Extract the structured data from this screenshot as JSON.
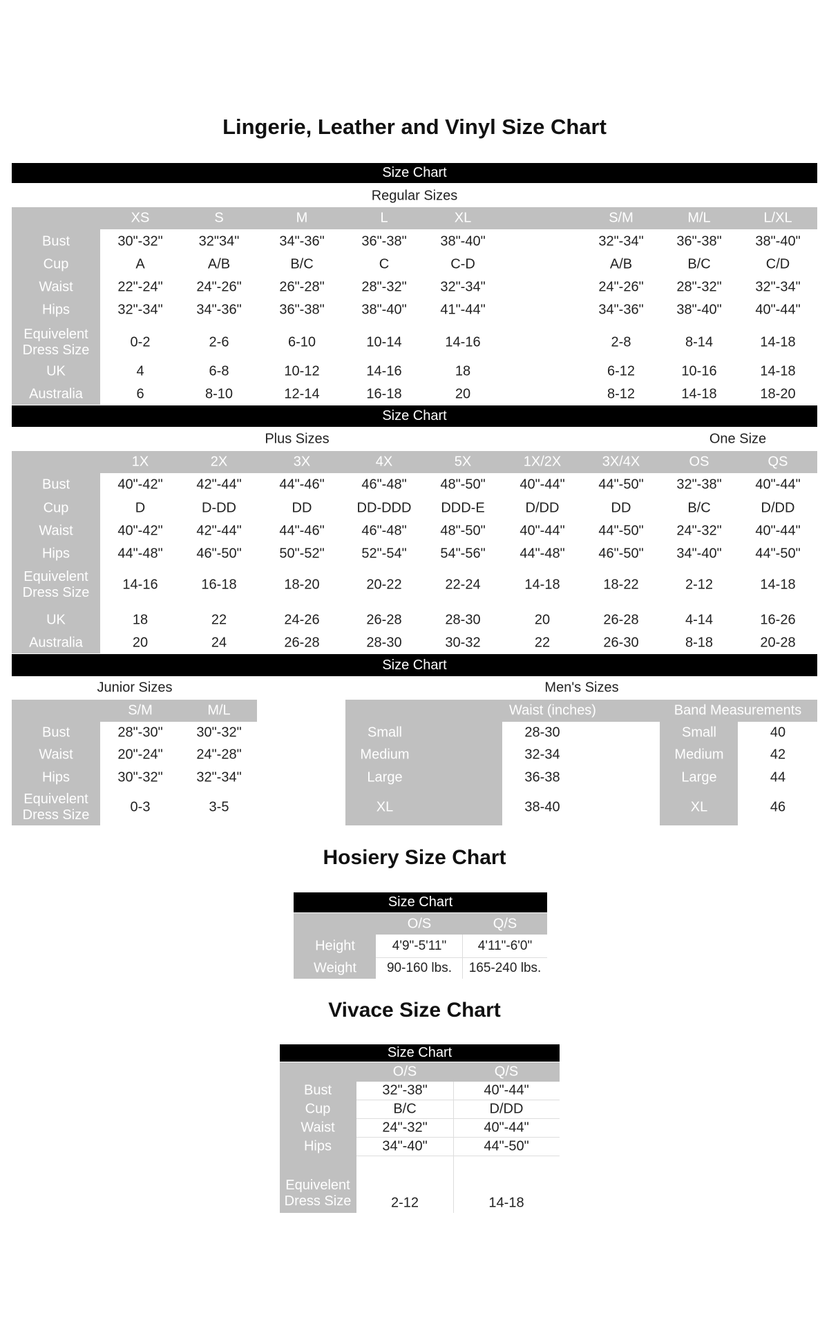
{
  "main_title": "Lingerie, Leather and Vinyl Size Chart",
  "bar_label": "Size Chart",
  "regular": {
    "subtitle": "Regular Sizes",
    "columns": [
      "XS",
      "S",
      "M",
      "L",
      "XL",
      "S/M",
      "M/L",
      "L/XL"
    ],
    "rows": [
      {
        "label": "Bust",
        "values": [
          "30\"-32\"",
          "32\"34\"",
          "34\"-36\"",
          "36\"-38\"",
          "38\"-40\"",
          "32\"-34\"",
          "36\"-38\"",
          "38\"-40\""
        ]
      },
      {
        "label": "Cup",
        "values": [
          "A",
          "A/B",
          "B/C",
          "C",
          "C-D",
          "A/B",
          "B/C",
          "C/D"
        ]
      },
      {
        "label": "Waist",
        "values": [
          "22\"-24\"",
          "24\"-26\"",
          "26\"-28\"",
          "28\"-32\"",
          "32\"-34\"",
          "24\"-26\"",
          "28\"-32\"",
          "32\"-34\""
        ]
      },
      {
        "label": "Hips",
        "values": [
          "32\"-34\"",
          "34\"-36\"",
          "36\"-38\"",
          "38\"-40\"",
          "41\"-44\"",
          "34\"-36\"",
          "38\"-40\"",
          "40\"-44\""
        ]
      },
      {
        "label": "Equivelent Dress Size",
        "values": [
          "0-2",
          "2-6",
          "6-10",
          "10-14",
          "14-16",
          "2-8",
          "8-14",
          "14-18"
        ]
      },
      {
        "label": "UK",
        "values": [
          "4",
          "6-8",
          "10-12",
          "14-16",
          "18",
          "6-12",
          "10-16",
          "14-18"
        ]
      },
      {
        "label": "Australia",
        "values": [
          "6",
          "8-10",
          "12-14",
          "16-18",
          "20",
          "8-12",
          "14-18",
          "18-20"
        ]
      }
    ]
  },
  "plus": {
    "subtitle": "Plus Sizes",
    "subtitle_one_size": "One Size",
    "columns": [
      "1X",
      "2X",
      "3X",
      "4X",
      "5X",
      "1X/2X",
      "3X/4X",
      "OS",
      "QS"
    ],
    "rows": [
      {
        "label": "Bust",
        "values": [
          "40\"-42\"",
          "42\"-44\"",
          "44\"-46\"",
          "46\"-48\"",
          "48\"-50\"",
          "40\"-44\"",
          "44\"-50\"",
          "32\"-38\"",
          "40\"-44\""
        ]
      },
      {
        "label": "Cup",
        "values": [
          "D",
          "D-DD",
          "DD",
          "DD-DDD",
          "DDD-E",
          "D/DD",
          "DD",
          "B/C",
          "D/DD"
        ]
      },
      {
        "label": "Waist",
        "values": [
          "40\"-42\"",
          "42\"-44\"",
          "44\"-46\"",
          "46\"-48\"",
          "48\"-50\"",
          "40\"-44\"",
          "44\"-50\"",
          "24\"-32\"",
          "40\"-44\""
        ]
      },
      {
        "label": "Hips",
        "values": [
          "44\"-48\"",
          "46\"-50\"",
          "50\"-52\"",
          "52\"-54\"",
          "54\"-56\"",
          "44\"-48\"",
          "46\"-50\"",
          "34\"-40\"",
          "44\"-50\""
        ]
      },
      {
        "label": "Equivelent Dress Size",
        "values": [
          "14-16",
          "16-18",
          "18-20",
          "20-22",
          "22-24",
          "14-18",
          "18-22",
          "2-12",
          "14-18"
        ]
      },
      {
        "label": "UK",
        "values": [
          "18",
          "22",
          "24-26",
          "26-28",
          "28-30",
          "20",
          "26-28",
          "4-14",
          "16-26"
        ]
      },
      {
        "label": "Australia",
        "values": [
          "20",
          "24",
          "26-28",
          "28-30",
          "30-32",
          "22",
          "26-30",
          "8-18",
          "20-28"
        ]
      }
    ]
  },
  "junior": {
    "subtitle": "Junior Sizes",
    "columns": [
      "S/M",
      "M/L"
    ],
    "rows": [
      {
        "label": "Bust",
        "values": [
          "28\"-30\"",
          "30\"-32\""
        ]
      },
      {
        "label": "Waist",
        "values": [
          "20\"-24\"",
          "24\"-28\""
        ]
      },
      {
        "label": "Hips",
        "values": [
          "30\"-32\"",
          "32\"-34\""
        ]
      },
      {
        "label": "Equivelent Dress Size",
        "values": [
          "0-3",
          "3-5"
        ]
      }
    ]
  },
  "mens": {
    "subtitle": "Men's Sizes",
    "waist_header": "Waist (inches)",
    "band_header": "Band Measurements",
    "waist_rows": [
      {
        "label": "Small",
        "value": "28-30"
      },
      {
        "label": "Medium",
        "value": "32-34"
      },
      {
        "label": "Large",
        "value": "36-38"
      },
      {
        "label": "XL",
        "value": "38-40"
      }
    ],
    "band_rows": [
      {
        "label": "Small",
        "value": "40"
      },
      {
        "label": "Medium",
        "value": "42"
      },
      {
        "label": "Large",
        "value": "44"
      },
      {
        "label": "XL",
        "value": "46"
      }
    ]
  },
  "hosiery": {
    "title": "Hosiery Size Chart",
    "columns": [
      "O/S",
      "Q/S"
    ],
    "rows": [
      {
        "label": "Height",
        "values": [
          "4'9\"-5'11\"",
          "4'11\"-6'0\""
        ]
      },
      {
        "label": "Weight",
        "values": [
          "90-160 lbs.",
          "165-240 lbs."
        ]
      }
    ]
  },
  "vivace": {
    "title": "Vivace Size Chart",
    "columns": [
      "O/S",
      "Q/S"
    ],
    "rows": [
      {
        "label": "Bust",
        "values": [
          "32\"-38\"",
          "40\"-44\""
        ]
      },
      {
        "label": "Cup",
        "values": [
          "B/C",
          "D/DD"
        ]
      },
      {
        "label": "Waist",
        "values": [
          "24\"-32\"",
          "40\"-44\""
        ]
      },
      {
        "label": "Hips",
        "values": [
          "34\"-40\"",
          "44\"-50\""
        ]
      },
      {
        "label": "Equivelent Dress Size",
        "values": [
          "2-12",
          "14-18"
        ]
      }
    ]
  },
  "colors": {
    "bar": "#000000",
    "gray": "#c0c0c0",
    "label_text": "#ffffff"
  }
}
